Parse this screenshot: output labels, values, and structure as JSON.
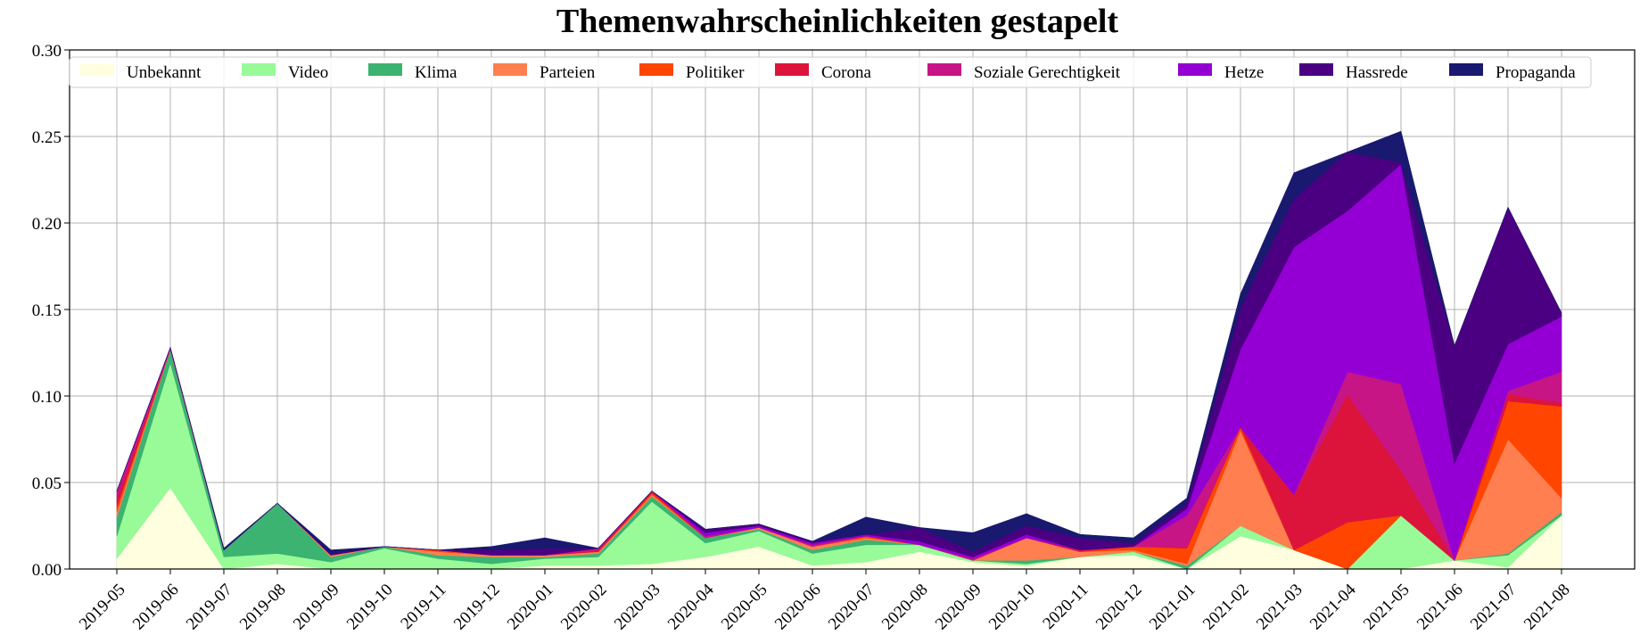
{
  "chart_data": {
    "type": "area",
    "stacked": true,
    "title": "Themenwahrscheinlichkeiten gestapelt",
    "xlabel": "",
    "ylabel": "",
    "ylim": [
      0,
      0.3
    ],
    "yticks": [
      "0.00",
      "0.05",
      "0.10",
      "0.15",
      "0.20",
      "0.25",
      "0.30"
    ],
    "grid": true,
    "legend_position": "top",
    "categories": [
      "2019-05",
      "2019-06",
      "2019-07",
      "2019-08",
      "2019-09",
      "2019-10",
      "2019-11",
      "2019-12",
      "2020-01",
      "2020-02",
      "2020-03",
      "2020-04",
      "2020-05",
      "2020-06",
      "2020-07",
      "2020-08",
      "2020-09",
      "2020-10",
      "2020-11",
      "2020-12",
      "2021-01",
      "2021-02",
      "2021-03",
      "2021-04",
      "2021-05",
      "2021-06",
      "2021-07",
      "2021-08"
    ],
    "series": [
      {
        "name": "Unbekannt",
        "color": "#ffffe0",
        "values": [
          0.006,
          0.047,
          0.0,
          0.003,
          0.0,
          0.0,
          0.0,
          0.0,
          0.002,
          0.002,
          0.003,
          0.007,
          0.013,
          0.002,
          0.004,
          0.01,
          0.004,
          0.002,
          0.007,
          0.008,
          0.0,
          0.019,
          0.011,
          0.0,
          0.0,
          0.005,
          0.001,
          0.031
        ]
      },
      {
        "name": "Video",
        "color": "#98fb98",
        "values": [
          0.013,
          0.072,
          0.007,
          0.006,
          0.004,
          0.012,
          0.006,
          0.003,
          0.004,
          0.005,
          0.036,
          0.008,
          0.009,
          0.007,
          0.01,
          0.004,
          0.001,
          0.001,
          0.0,
          0.002,
          0.0,
          0.006,
          0.0,
          0.0,
          0.031,
          0.0,
          0.007,
          0.0
        ]
      },
      {
        "name": "Klima",
        "color": "#3cb371",
        "values": [
          0.011,
          0.008,
          0.004,
          0.029,
          0.003,
          0.001,
          0.002,
          0.004,
          0.001,
          0.002,
          0.003,
          0.003,
          0.001,
          0.002,
          0.003,
          0.0,
          0.0,
          0.002,
          0.0,
          0.0,
          0.002,
          0.0,
          0.0,
          0.0,
          0.0,
          0.0,
          0.001,
          0.002
        ]
      },
      {
        "name": "Parteien",
        "color": "#ff7f50",
        "values": [
          0.003,
          0.0,
          0.0,
          0.0,
          0.001,
          0.0,
          0.002,
          0.001,
          0.001,
          0.001,
          0.001,
          0.0,
          0.001,
          0.002,
          0.001,
          0.0,
          0.0,
          0.013,
          0.003,
          0.001,
          0.001,
          0.055,
          0.0,
          0.0,
          0.0,
          0.0,
          0.066,
          0.008
        ]
      },
      {
        "name": "Politiker",
        "color": "#ff4500",
        "values": [
          0.003,
          0.0,
          0.0,
          0.0,
          0.0,
          0.0,
          0.001,
          0.0,
          0.0,
          0.0,
          0.001,
          0.0,
          0.0,
          0.0,
          0.001,
          0.0,
          0.0,
          0.0,
          0.0,
          0.002,
          0.009,
          0.002,
          0.0,
          0.027,
          0.0,
          0.0,
          0.022,
          0.053
        ]
      },
      {
        "name": "Corona",
        "color": "#dc143c",
        "values": [
          0.004,
          0.0,
          0.0,
          0.0,
          0.0,
          0.0,
          0.0,
          0.0,
          0.0,
          0.001,
          0.001,
          0.0,
          0.0,
          0.0,
          0.0,
          0.0,
          0.0,
          0.0,
          0.001,
          0.0,
          0.001,
          0.0,
          0.032,
          0.074,
          0.026,
          0.0,
          0.004,
          0.002
        ]
      },
      {
        "name": "Soziale Gerechtigkeit",
        "color": "#c71585",
        "values": [
          0.005,
          0.001,
          0.0,
          0.0,
          0.0,
          0.0,
          0.0,
          0.0,
          0.0,
          0.001,
          0.0,
          0.001,
          0.0,
          0.001,
          0.0,
          0.0,
          0.001,
          0.0,
          0.0,
          0.0,
          0.018,
          0.0,
          0.0,
          0.013,
          0.05,
          0.0,
          0.002,
          0.018
        ]
      },
      {
        "name": "Hetze",
        "color": "#9400d3",
        "values": [
          0.0,
          0.0,
          0.0,
          0.0,
          0.0,
          0.0,
          0.0,
          0.0,
          0.0,
          0.0,
          0.0,
          0.002,
          0.001,
          0.001,
          0.001,
          0.002,
          0.001,
          0.002,
          0.0,
          0.0,
          0.004,
          0.045,
          0.143,
          0.093,
          0.127,
          0.056,
          0.027,
          0.032
        ]
      },
      {
        "name": "Hassrede",
        "color": "#4b0082",
        "values": [
          0.0,
          0.0,
          0.0,
          0.0,
          0.001,
          0.0,
          0.0,
          0.003,
          0.004,
          0.0,
          0.0,
          0.002,
          0.001,
          0.001,
          0.0,
          0.008,
          0.003,
          0.005,
          0.007,
          0.002,
          0.003,
          0.024,
          0.028,
          0.034,
          0.001,
          0.068,
          0.079,
          0.002
        ]
      },
      {
        "name": "Propaganda",
        "color": "#191970",
        "values": [
          0.0,
          0.0,
          0.001,
          0.0,
          0.002,
          0.0,
          0.0,
          0.002,
          0.006,
          0.0,
          0.0,
          0.0,
          0.0,
          0.0,
          0.01,
          0.0,
          0.011,
          0.007,
          0.002,
          0.003,
          0.003,
          0.008,
          0.015,
          0.0,
          0.018,
          0.0,
          0.0,
          0.0
        ]
      }
    ]
  }
}
